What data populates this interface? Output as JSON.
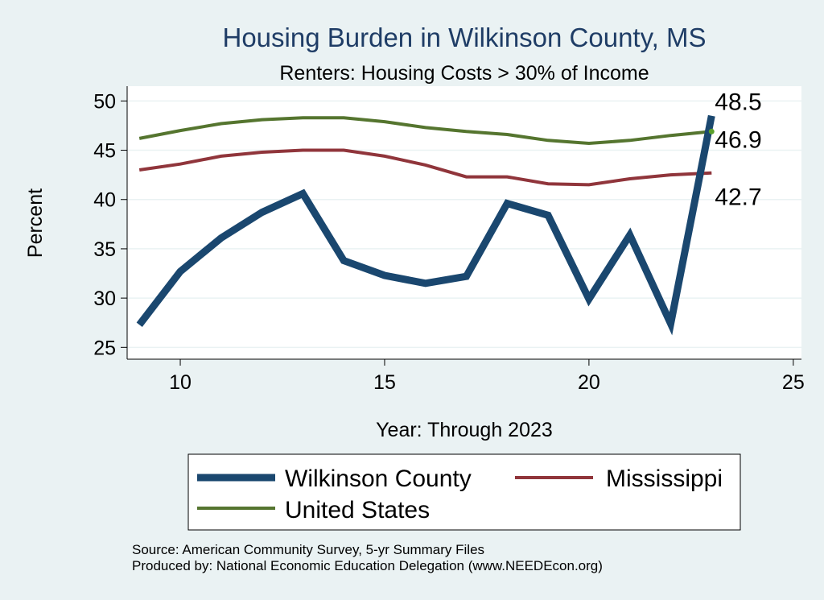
{
  "chart_data": {
    "type": "line",
    "title": "Housing Burden in Wilkinson County, MS",
    "subtitle": "Renters: Housing Costs > 30% of Income",
    "xlabel": "Year: Through 2023",
    "ylabel": "Percent",
    "xlim": [
      8.7,
      25.2
    ],
    "ylim": [
      23.8,
      51.5
    ],
    "xticks": [
      10,
      15,
      20,
      25
    ],
    "yticks": [
      25,
      30,
      35,
      40,
      45,
      50
    ],
    "grid": true,
    "legend_position": "bottom",
    "x": [
      9,
      10,
      11,
      12,
      13,
      14,
      15,
      16,
      17,
      18,
      19,
      20,
      21,
      22,
      23
    ],
    "series": [
      {
        "name": "Wilkinson County",
        "color": "#1a476f",
        "width": "thick",
        "values": [
          27.3,
          32.7,
          36.1,
          38.7,
          40.6,
          33.8,
          32.3,
          31.5,
          32.2,
          39.6,
          38.4,
          29.9,
          36.4,
          27.4,
          48.5
        ],
        "end_label": "48.5"
      },
      {
        "name": "Mississippi",
        "color": "#90353b",
        "width": "thin",
        "values": [
          43.0,
          43.6,
          44.4,
          44.8,
          45.0,
          45.0,
          44.4,
          43.5,
          42.3,
          42.3,
          41.6,
          41.5,
          42.1,
          42.5,
          42.7
        ],
        "end_label": "42.7"
      },
      {
        "name": "United States",
        "color": "#55752f",
        "width": "thin",
        "values": [
          46.2,
          47.0,
          47.7,
          48.1,
          48.3,
          48.3,
          47.9,
          47.3,
          46.9,
          46.6,
          46.0,
          45.7,
          46.0,
          46.5,
          46.9
        ],
        "end_label": "46.9"
      }
    ]
  },
  "notes": {
    "source": "Source: American Community Survey, 5-yr Summary Files",
    "produced": "Produced by: National Economic Education Delegation (www.NEEDEcon.org)"
  }
}
